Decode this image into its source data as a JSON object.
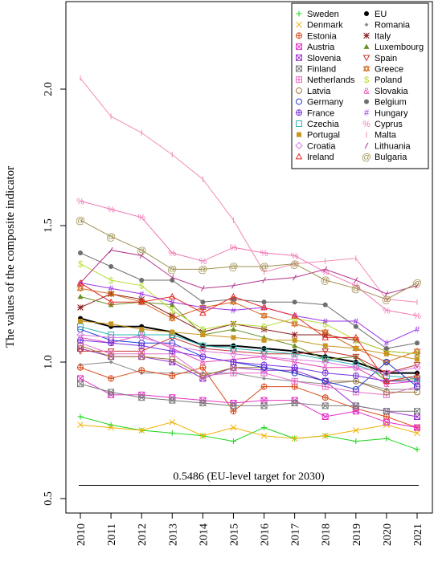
{
  "chart_data": {
    "type": "line",
    "title": "",
    "xlabel": "",
    "ylabel": "The values of the composite indicator",
    "x": [
      2010,
      2011,
      2012,
      2013,
      2014,
      2015,
      2016,
      2017,
      2018,
      2019,
      2020,
      2021
    ],
    "yticks": [
      "0.5",
      "1.0",
      "1.5",
      "2.0"
    ],
    "ylim": [
      0.45,
      2.3
    ],
    "legend_position": "top-right",
    "annotation": {
      "text": "0.5486 (EU-level target for 2030)",
      "value": 0.5486
    },
    "series": [
      {
        "name": "Sweden",
        "color": "#1ad61a",
        "marker": "plus",
        "values": [
          0.8,
          0.77,
          0.75,
          0.74,
          0.73,
          0.71,
          0.76,
          0.72,
          0.73,
          0.71,
          0.72,
          0.68
        ]
      },
      {
        "name": "EU",
        "color": "#000000",
        "marker": "dot",
        "width": 2,
        "values": [
          1.16,
          1.13,
          1.13,
          1.11,
          1.06,
          1.06,
          1.05,
          1.04,
          1.02,
          1.0,
          0.96,
          0.96
        ]
      },
      {
        "name": "Denmark",
        "color": "#f0b000",
        "marker": "x",
        "values": [
          0.77,
          0.76,
          0.75,
          0.78,
          0.73,
          0.76,
          0.73,
          0.72,
          0.73,
          0.75,
          0.77,
          0.74
        ]
      },
      {
        "name": "Romania",
        "color": "#8c8c8c",
        "marker": "diamond-small",
        "values": [
          0.99,
          1.0,
          0.96,
          0.96,
          0.96,
          0.96,
          0.94,
          0.93,
          0.92,
          0.93,
          0.9,
          0.9
        ]
      },
      {
        "name": "Estonia",
        "color": "#d94a1a",
        "marker": "circleplus",
        "values": [
          0.98,
          0.94,
          0.97,
          0.95,
          0.98,
          0.82,
          0.91,
          0.91,
          0.87,
          0.83,
          0.8,
          0.76
        ]
      },
      {
        "name": "Italy",
        "color": "#8b1a1a",
        "marker": "asterisk",
        "values": [
          1.2,
          1.25,
          1.23,
          1.17,
          1.11,
          1.14,
          1.12,
          1.1,
          1.1,
          1.08,
          1.04,
          1.03
        ]
      },
      {
        "name": "Austria",
        "color": "#e632c8",
        "marker": "boxx",
        "values": [
          0.94,
          0.88,
          0.88,
          0.87,
          0.86,
          0.85,
          0.86,
          0.86,
          0.8,
          0.82,
          0.78,
          0.76
        ]
      },
      {
        "name": "Luxembourg",
        "color": "#6b8e23",
        "marker": "triangle-filled",
        "values": [
          1.24,
          1.21,
          1.22,
          1.21,
          1.1,
          1.12,
          1.09,
          1.06,
          1.01,
          1.02,
          0.93,
          0.94
        ]
      },
      {
        "name": "Slovenia",
        "color": "#9932cc",
        "marker": "boxx",
        "values": [
          1.05,
          1.02,
          1.02,
          1.0,
          0.94,
          0.98,
          0.97,
          0.97,
          0.93,
          0.84,
          0.82,
          0.8
        ]
      },
      {
        "name": "Spain",
        "color": "#c83232",
        "marker": "triangle-down",
        "values": [
          1.04,
          1.04,
          1.04,
          1.09,
          1.05,
          1.04,
          1.03,
          1.03,
          1.04,
          1.02,
          0.96,
          0.99
        ]
      },
      {
        "name": "Finland",
        "color": "#7a7a7a",
        "marker": "boxx",
        "values": [
          0.92,
          0.89,
          0.87,
          0.86,
          0.85,
          0.84,
          0.84,
          0.85,
          0.84,
          0.84,
          0.82,
          0.82
        ]
      },
      {
        "name": "Greece",
        "color": "#d2691e",
        "marker": "star-david",
        "values": [
          1.27,
          1.25,
          1.22,
          1.16,
          1.2,
          1.22,
          1.17,
          1.14,
          1.11,
          1.05,
          1.0,
          1.04
        ]
      },
      {
        "name": "Netherlands",
        "color": "#e66bc8",
        "marker": "boxplus",
        "values": [
          1.07,
          1.03,
          1.03,
          1.03,
          0.95,
          0.96,
          0.96,
          0.93,
          0.91,
          0.89,
          0.88,
          0.91
        ]
      },
      {
        "name": "Poland",
        "color": "#b4dc32",
        "marker": "dollar",
        "values": [
          1.36,
          1.3,
          1.28,
          1.19,
          1.12,
          1.14,
          1.13,
          1.16,
          1.14,
          1.08,
          1.04,
          1.03
        ]
      },
      {
        "name": "Latvia",
        "color": "#a0783c",
        "marker": "circle",
        "values": [
          1.06,
          1.02,
          1.02,
          1.01,
          0.95,
          0.98,
          0.98,
          0.96,
          0.93,
          0.93,
          0.89,
          0.89
        ]
      },
      {
        "name": "Slovakia",
        "color": "#e646b4",
        "marker": "ampersand",
        "values": [
          1.09,
          1.07,
          1.1,
          1.05,
          1.0,
          1.01,
          1.02,
          1.0,
          0.98,
          0.98,
          0.92,
          0.93
        ]
      },
      {
        "name": "Germany",
        "color": "#1e3cd2",
        "marker": "circle",
        "values": [
          1.12,
          1.08,
          1.07,
          1.07,
          1.02,
          1.0,
          0.98,
          0.96,
          0.93,
          0.9,
          1.0,
          0.91
        ]
      },
      {
        "name": "Belgium",
        "color": "#6e6e6e",
        "marker": "dot",
        "values": [
          1.4,
          1.35,
          1.3,
          1.3,
          1.22,
          1.23,
          1.22,
          1.22,
          1.21,
          1.13,
          1.05,
          1.07
        ]
      },
      {
        "name": "France",
        "color": "#7832dc",
        "marker": "circleplus",
        "values": [
          1.08,
          1.07,
          1.06,
          1.04,
          1.02,
          1.0,
          0.99,
          0.98,
          0.96,
          0.95,
          0.93,
          0.93
        ]
      },
      {
        "name": "Hungary",
        "color": "#9b32e6",
        "marker": "hash",
        "values": [
          1.29,
          1.27,
          1.25,
          1.22,
          1.2,
          1.19,
          1.2,
          1.17,
          1.15,
          1.15,
          1.07,
          1.12
        ]
      },
      {
        "name": "Czechia",
        "color": "#32b4b4",
        "marker": "square",
        "values": [
          1.13,
          1.1,
          1.1,
          1.1,
          1.06,
          1.05,
          1.04,
          1.03,
          1.01,
          0.99,
          0.95,
          0.94
        ]
      },
      {
        "name": "Cyprus",
        "color": "#f078b4",
        "marker": "percent",
        "values": [
          1.59,
          1.56,
          1.53,
          1.4,
          1.37,
          1.42,
          1.4,
          1.39,
          1.33,
          1.28,
          1.19,
          1.17
        ]
      },
      {
        "name": "Portugal",
        "color": "#c8961e",
        "marker": "square-filled",
        "values": [
          1.15,
          1.14,
          1.12,
          1.11,
          1.1,
          1.09,
          1.08,
          1.08,
          1.06,
          1.05,
          1.03,
          1.01
        ]
      },
      {
        "name": "Malta",
        "color": "#f08cb4",
        "marker": "tick",
        "values": [
          2.04,
          1.9,
          1.84,
          1.76,
          1.67,
          1.52,
          1.33,
          1.36,
          1.37,
          1.38,
          1.23,
          1.22
        ]
      },
      {
        "name": "Croatia",
        "color": "#dc78dc",
        "marker": "diamond",
        "values": [
          1.1,
          1.09,
          1.09,
          1.06,
          1.04,
          1.03,
          1.02,
          1.01,
          1.0,
          0.98,
          0.96,
          0.98
        ]
      },
      {
        "name": "Lithuania",
        "color": "#b4328c",
        "marker": "slash",
        "values": [
          1.29,
          1.41,
          1.39,
          1.31,
          1.27,
          1.28,
          1.3,
          1.31,
          1.34,
          1.3,
          1.25,
          1.28
        ]
      },
      {
        "name": "Ireland",
        "color": "#e62828",
        "marker": "triangle",
        "values": [
          1.29,
          1.22,
          1.22,
          1.24,
          1.18,
          1.24,
          1.2,
          1.17,
          1.09,
          1.09,
          0.93,
          0.95
        ]
      },
      {
        "name": "Bulgaria",
        "color": "#a09050",
        "marker": "at",
        "values": [
          1.52,
          1.46,
          1.41,
          1.34,
          1.34,
          1.35,
          1.35,
          1.36,
          1.3,
          1.27,
          1.23,
          1.29
        ]
      }
    ]
  }
}
